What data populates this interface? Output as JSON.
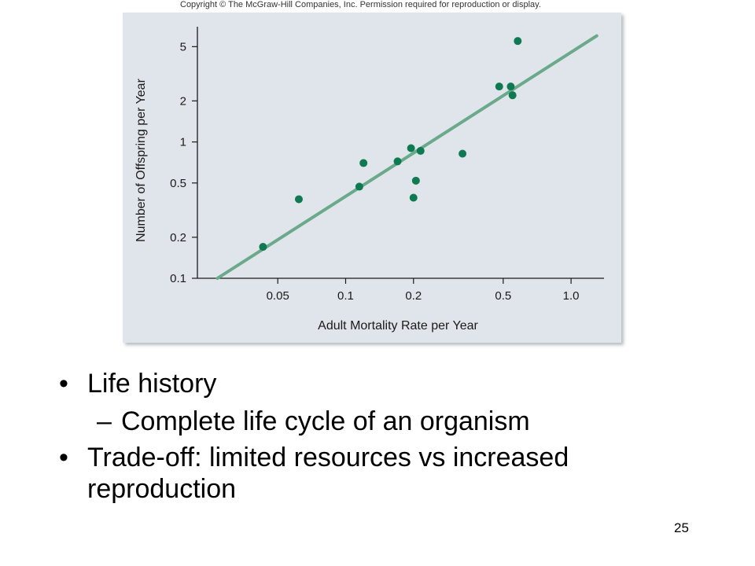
{
  "copyright": "Copyright © The McGraw-Hill Companies, Inc. Permission required for reproduction or display.",
  "chart_data": {
    "type": "scatter",
    "xlabel": "Adult Mortality Rate per Year",
    "ylabel": "Number of Offspring per Year",
    "x_scale": "log",
    "y_scale": "log",
    "xlim": [
      0.022,
      1.4
    ],
    "ylim": [
      0.1,
      7
    ],
    "x_ticks": [
      0.05,
      0.1,
      0.2,
      0.5,
      1.0
    ],
    "x_tick_labels": [
      "0.05",
      "0.1",
      "0.2",
      "0.5",
      "1.0"
    ],
    "y_ticks": [
      0.1,
      0.2,
      0.5,
      1,
      2,
      5
    ],
    "y_tick_labels": [
      "0.1",
      "0.2",
      "0.5",
      "1",
      "2",
      "5"
    ],
    "grid": false,
    "points": [
      {
        "x": 0.043,
        "y": 0.17
      },
      {
        "x": 0.062,
        "y": 0.38
      },
      {
        "x": 0.115,
        "y": 0.47
      },
      {
        "x": 0.12,
        "y": 0.7
      },
      {
        "x": 0.17,
        "y": 0.72
      },
      {
        "x": 0.195,
        "y": 0.9
      },
      {
        "x": 0.2,
        "y": 0.39
      },
      {
        "x": 0.205,
        "y": 0.52
      },
      {
        "x": 0.215,
        "y": 0.86
      },
      {
        "x": 0.33,
        "y": 0.82
      },
      {
        "x": 0.48,
        "y": 2.55
      },
      {
        "x": 0.54,
        "y": 2.55
      },
      {
        "x": 0.55,
        "y": 2.2
      },
      {
        "x": 0.58,
        "y": 5.5
      }
    ],
    "fit_line": {
      "x": [
        0.027,
        1.3
      ],
      "y": [
        0.1,
        6.0
      ]
    },
    "colors": {
      "points": "#0f7a52",
      "fit_line": "#6aaa8a",
      "panel": "#dfe5ea"
    }
  },
  "bullets": {
    "item1": {
      "mark": "•",
      "text": "Life history"
    },
    "item1_sub": {
      "mark": "–",
      "text": "Complete life cycle of an organism"
    },
    "item2": {
      "mark": "•",
      "text": "Trade-off: limited resources vs increased reproduction"
    }
  },
  "page_number": "25"
}
